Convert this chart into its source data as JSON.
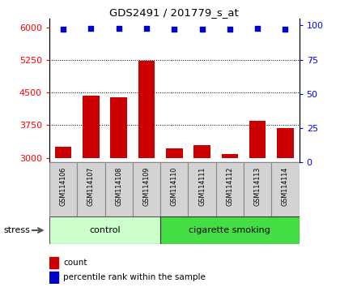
{
  "title": "GDS2491 / 201779_s_at",
  "samples": [
    "GSM114106",
    "GSM114107",
    "GSM114108",
    "GSM114109",
    "GSM114110",
    "GSM114111",
    "GSM114112",
    "GSM114113",
    "GSM114114"
  ],
  "counts": [
    3250,
    4430,
    4390,
    5230,
    3220,
    3290,
    3080,
    3850,
    3680
  ],
  "percentiles": [
    97,
    98,
    98,
    98,
    97,
    97,
    97,
    98,
    97
  ],
  "bar_color": "#cc0000",
  "dot_color": "#0000cc",
  "ylim_left": [
    2900,
    6200
  ],
  "ylim_right": [
    0,
    105
  ],
  "yticks_left": [
    3000,
    3750,
    4500,
    5250,
    6000
  ],
  "yticks_right": [
    0,
    25,
    50,
    75,
    100
  ],
  "grid_values": [
    3750,
    4500,
    5250
  ],
  "control_color_light": "#ccffcc",
  "smoking_color": "#44dd44",
  "label_count": "count",
  "label_percentile": "percentile rank within the sample",
  "stress_label": "stress",
  "group_label_control": "control",
  "group_label_smoking": "cigarette smoking",
  "n_control": 4,
  "n_smoking": 5
}
